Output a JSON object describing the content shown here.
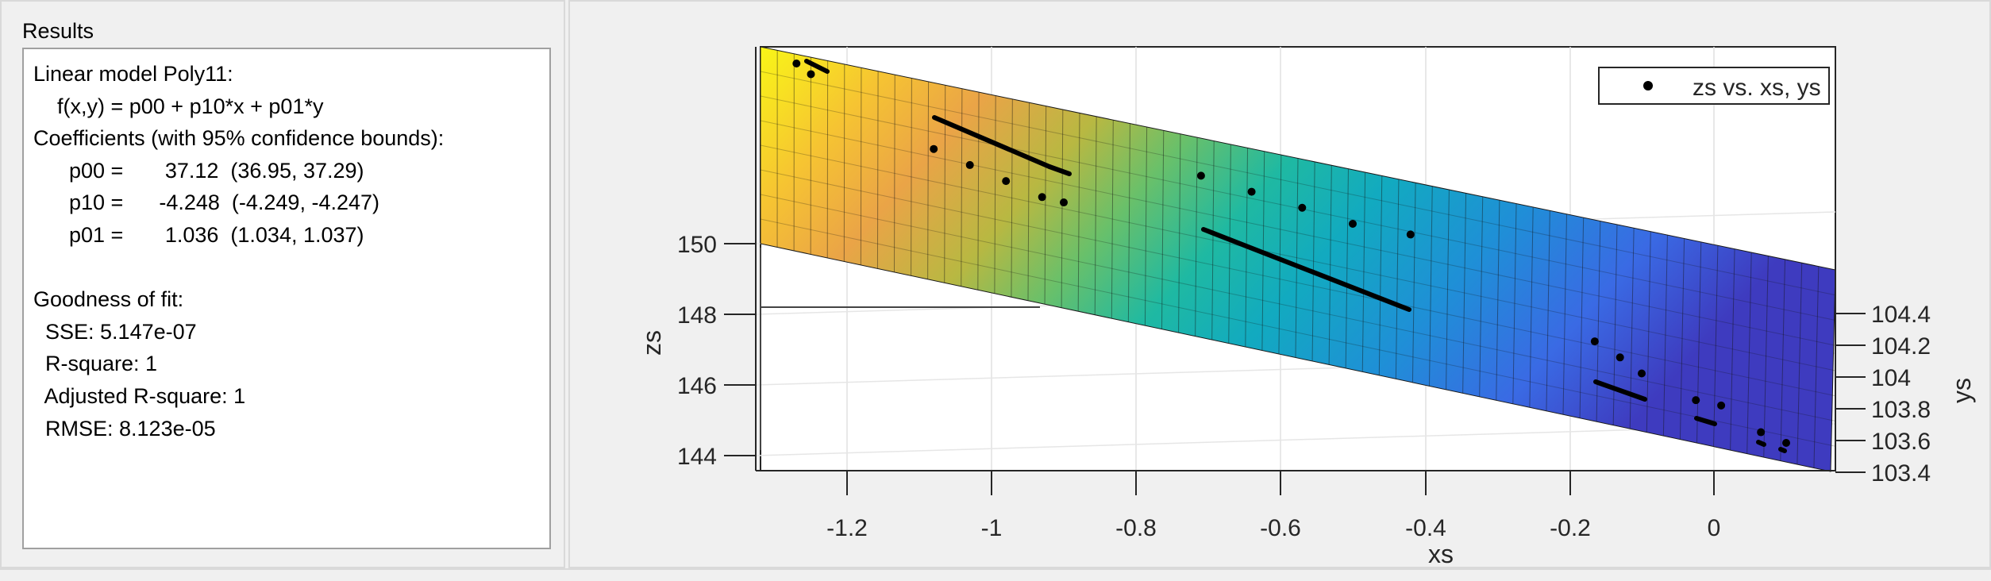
{
  "results": {
    "title": "Results",
    "lines": [
      "Linear model Poly11:",
      "    f(x,y) = p00 + p10*x + p01*y",
      "Coefficients (with 95% confidence bounds):",
      "      p00 =       37.12  (36.95, 37.29)",
      "      p10 =      -4.248  (-4.249, -4.247)",
      "      p01 =       1.036  (1.034, 1.037)",
      "",
      "Goodness of fit:",
      "  SSE: 5.147e-07",
      "  R-square: 1",
      "  Adjusted R-square: 1",
      "  RMSE: 8.123e-05"
    ]
  },
  "chart_data": {
    "type": "scatter",
    "subtype": "3d-surface-fit",
    "legend": {
      "entries": [
        "zs vs. xs, ys"
      ],
      "position": "top-right"
    },
    "xlabel": "xs",
    "ylabel": "ys",
    "zlabel": "zs",
    "x_ticks": [
      "-1.2",
      "-1",
      "-0.8",
      "-0.6",
      "-0.4",
      "-0.2",
      "0"
    ],
    "y_ticks": [
      "104.4",
      "104.2",
      "104",
      "103.8",
      "103.6",
      "103.4"
    ],
    "z_ticks": [
      "150",
      "148",
      "146",
      "144"
    ],
    "xlim": [
      -1.33,
      0.17
    ],
    "ylim": [
      103.4,
      104.45
    ],
    "zlim": [
      143.6,
      151.5
    ],
    "grid": true,
    "surface_colormap": "parula",
    "surface": {
      "p00": 37.12,
      "p10": -4.248,
      "p01": 1.036
    },
    "series": [
      {
        "name": "zs vs. xs, ys",
        "marker": "dot",
        "color": "#000000",
        "x": [
          -1.27,
          -1.25,
          -1.08,
          -1.03,
          -0.98,
          -0.93,
          -0.9,
          -0.71,
          -0.64,
          -0.57,
          -0.5,
          -0.42,
          -0.165,
          -0.13,
          -0.1,
          -0.025,
          0.01,
          0.065,
          0.1
        ],
        "z": [
          151.3,
          151.1,
          149.7,
          149.4,
          149.1,
          148.8,
          148.7,
          149.2,
          148.9,
          148.6,
          148.3,
          148.1,
          146.1,
          145.8,
          145.5,
          145.0,
          144.9,
          144.4,
          144.2
        ]
      }
    ]
  }
}
